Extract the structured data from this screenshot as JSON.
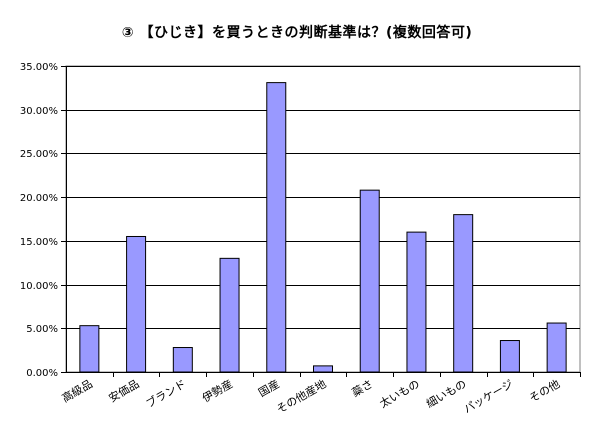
{
  "chart_data": {
    "type": "bar",
    "title": "③ 【ひじき】を買うときの判断基準は？(複数回答可)",
    "xlabel": "",
    "ylabel": "",
    "categories": [
      "高級品",
      "安価品",
      "ブランド",
      "伊勢産",
      "国産",
      "その他産地",
      "蘂さ",
      "太いもの",
      "細いもの",
      "パッケージ",
      "その他"
    ],
    "values": [
      0.053,
      0.155,
      0.028,
      0.13,
      0.331,
      0.007,
      0.208,
      0.16,
      0.18,
      0.036,
      0.056
    ],
    "y_ticks": [
      "0.00%",
      "5.00%",
      "10.00%",
      "15.00%",
      "20.00%",
      "25.00%",
      "30.00%",
      "35.00%"
    ],
    "ylim": [
      0,
      0.35
    ],
    "grid": "horizontal",
    "legend": "none",
    "colors": {
      "bar_fill": "#9999ff",
      "bar_stroke": "#000000",
      "grid": "#000000",
      "plot_background": "#ffffff"
    }
  }
}
